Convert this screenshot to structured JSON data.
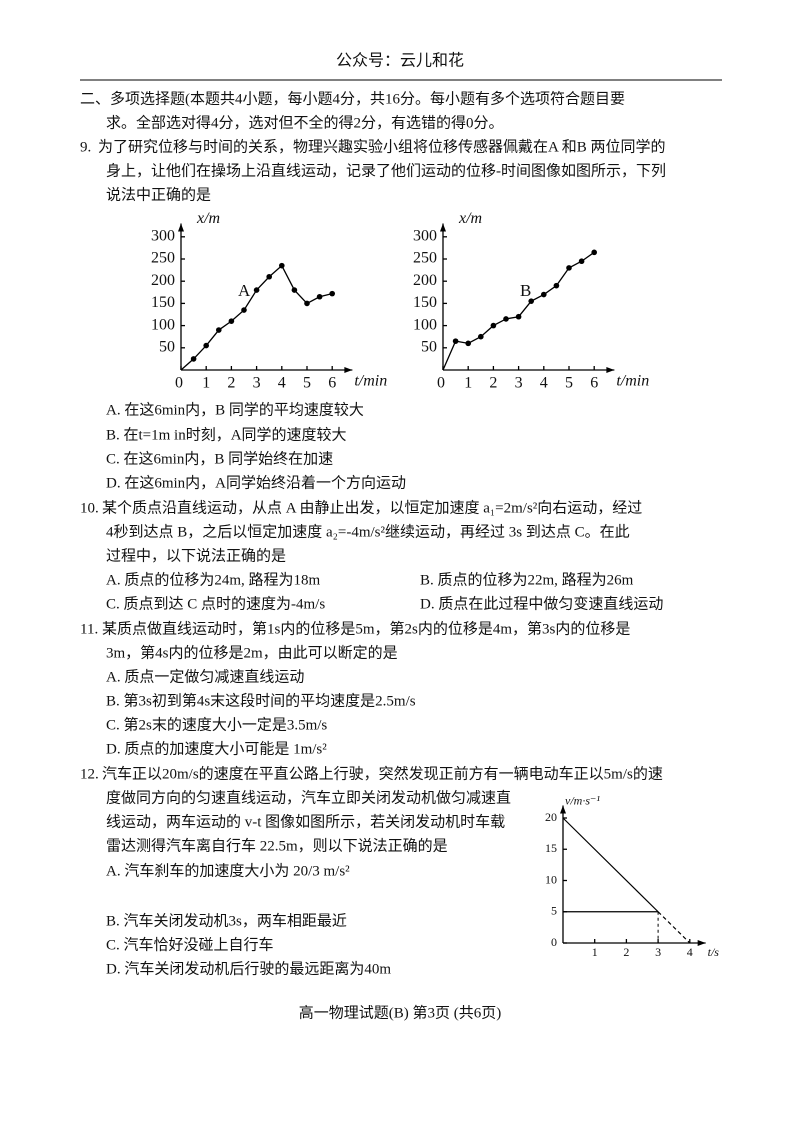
{
  "header": {
    "title": "公众号：云儿和花"
  },
  "section": {
    "lines": [
      "二、多项选择题(本题共4小题，每小题4分，共16分。每小题有多个选项符合题目要",
      "求。全部选对得4分，选对但不全的得2分，有选错的得0分。"
    ]
  },
  "questions": [
    {
      "number": "9.",
      "stem": [
        "为了研究位移与时间的关系，物理兴趣实验小组将位移传感器佩戴在A 和B 两位同学的",
        "身上，让他们在操场上沿直线运动，记录了他们运动的位移-时间图像如图所示，下列",
        "说法中正确的是"
      ],
      "options": [
        "A.  在这6min内，B 同学的平均速度较大",
        "B.  在t=1m in时刻，A同学的速度较大",
        "C.  在这6min内，B 同学始终在加速",
        "D.  在这6min内，A同学始终沿着一个方向运动"
      ]
    },
    {
      "number": "10.",
      "stem": [
        "某个质点沿直线运动，从点 A 由静止出发，以恒定加速度 a₁=2m/s²向右运动，经过",
        "4秒到达点 B，之后以恒定加速度 a₂=-4m/s²继续运动，再经过 3s 到达点 C。在此",
        "过程中，以下说法正确的是"
      ],
      "options": [
        "A.  质点的位移为24m, 路程为18m",
        "B.  质点的位移为22m, 路程为26m",
        "C.  质点到达 C 点时的速度为-4m/s",
        "D.  质点在此过程中做匀变速直线运动"
      ]
    },
    {
      "number": "11.",
      "stem": [
        "某质点做直线运动时，第1s内的位移是5m，第2s内的位移是4m，第3s内的位移是",
        "3m，第4s内的位移是2m，由此可以断定的是"
      ],
      "options": [
        "A.  质点一定做匀减速直线运动",
        "B.  第3s初到第4s末这段时间的平均速度是2.5m/s",
        "C.  第2s末的速度大小一定是3.5m/s",
        "D.  质点的加速度大小可能是 1m/s²"
      ]
    },
    {
      "number": "12.",
      "stem": [
        "汽车正以20m/s的速度在平直公路上行驶，突然发现正前方有一辆电动车正以5m/s的速",
        "度做同方向的匀速直线运动，汽车立即关闭发动机做匀减速直",
        "线运动，两车运动的 v-t 图像如图所示，若关闭发动机时车载",
        "雷达测得汽车离自行车 22.5m，则以下说法正确的是"
      ],
      "options": [
        "A.  汽车刹车的加速度大小为 20/3 m/s²",
        "B.  汽车关闭发动机3s，两车相距最近",
        "C.  汽车恰好没碰上自行车",
        "D.  汽车关闭发动机后行驶的最远距离为40m"
      ]
    }
  ],
  "figures": [
    {
      "type": "line",
      "ylabel": "x/m",
      "xlabel": "t/min",
      "label": "A",
      "xlim": [
        0,
        6.8
      ],
      "ylim": [
        0,
        330
      ],
      "xticks": [
        0,
        1,
        2,
        3,
        4,
        5,
        6
      ],
      "yticks": [
        50,
        100,
        150,
        200,
        250,
        300
      ],
      "x": [
        0,
        0.5,
        1,
        1.5,
        2,
        2.5,
        3,
        3.5,
        4,
        4.5,
        5,
        5.5,
        6
      ],
      "values": [
        0,
        25,
        55,
        90,
        110,
        135,
        180,
        210,
        235,
        180,
        150,
        165,
        172
      ]
    },
    {
      "type": "line",
      "ylabel": "x/m",
      "xlabel": "t/min",
      "label": "B",
      "xlim": [
        0,
        6.8
      ],
      "ylim": [
        0,
        330
      ],
      "xticks": [
        0,
        1,
        2,
        3,
        4,
        5,
        6
      ],
      "yticks": [
        50,
        100,
        150,
        200,
        250,
        300
      ],
      "x": [
        0,
        0.5,
        1,
        1.5,
        2,
        2.5,
        3,
        3.5,
        4,
        4.5,
        5,
        5.5,
        6
      ],
      "values": [
        0,
        65,
        60,
        75,
        100,
        115,
        120,
        155,
        170,
        190,
        230,
        245,
        265
      ]
    },
    {
      "type": "vt",
      "ylabel": "v/m·s⁻¹",
      "xlabel": "t/s",
      "xlim": [
        0,
        4.5
      ],
      "ylim": [
        0,
        22
      ],
      "xticks": [
        1,
        2,
        3,
        4
      ],
      "yticks": [
        0,
        5,
        10,
        15,
        20
      ],
      "series": [
        {
          "x": [
            0,
            3
          ],
          "values": [
            20,
            5
          ]
        },
        {
          "x": [
            3,
            4
          ],
          "values": [
            5,
            0
          ],
          "dashed": true
        },
        {
          "x": [
            0,
            3
          ],
          "values": [
            5,
            5
          ]
        }
      ]
    }
  ],
  "footer": {
    "text": "高一物理试题(B) 第3页 (共6页)"
  }
}
